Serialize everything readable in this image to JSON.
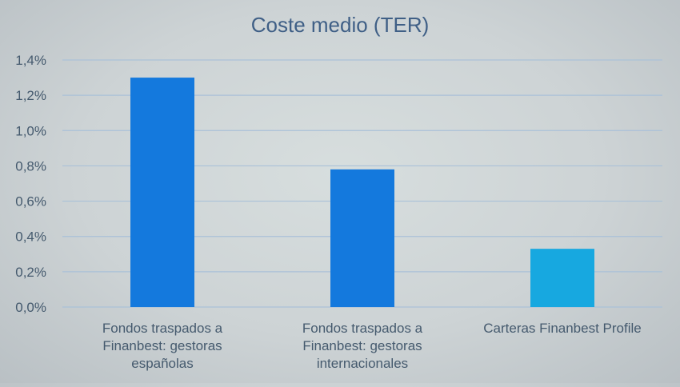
{
  "chart_data": {
    "type": "bar",
    "title": "Coste medio (TER)",
    "categories": [
      [
        "Fondos traspados a",
        "Finanbest: gestoras",
        "españolas"
      ],
      [
        "Fondos traspados a",
        "Finanbest: gestoras",
        "internacionales"
      ],
      [
        "Carteras Finanbest Profile"
      ]
    ],
    "values": [
      1.3,
      0.78,
      0.33
    ],
    "bar_colors": [
      "#1479dd",
      "#1479dd",
      "#17a8e0"
    ],
    "ylim": [
      0,
      1.4
    ],
    "y_ticks": [
      "0,0%",
      "0,2%",
      "0,4%",
      "0,6%",
      "0,8%",
      "1,0%",
      "1,2%",
      "1,4%"
    ],
    "grid": true,
    "legend": "none",
    "xlabel": "",
    "ylabel": ""
  },
  "colors": {
    "text": "#455a6e",
    "title": "#3f5f86",
    "grid": "#aac1d8"
  }
}
